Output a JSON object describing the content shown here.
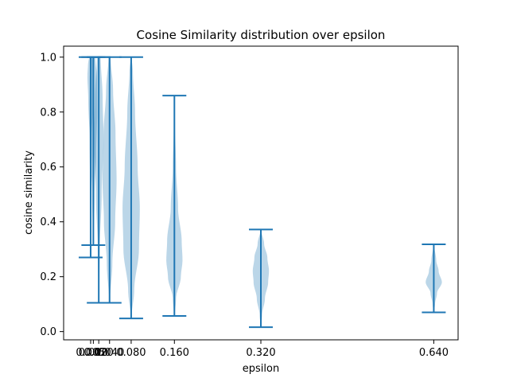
{
  "chart_data": {
    "type": "violin",
    "title": "Cosine Similarity distribution over epsilon",
    "xlabel": "epsilon",
    "ylabel": "cosine similarity",
    "xlim": [
      -0.045,
      0.685
    ],
    "ylim": [
      -0.03,
      1.04
    ],
    "x_ticks": [
      0.005,
      0.01,
      0.02,
      0.04,
      0.08,
      0.16,
      0.32,
      0.64
    ],
    "x_tick_labels": [
      "0.005",
      "0.010",
      "0.020",
      "0.040",
      "0.080",
      "0.160",
      "0.320",
      "0.640"
    ],
    "y_ticks": [
      0.0,
      0.2,
      0.4,
      0.6,
      0.8,
      1.0
    ],
    "y_tick_labels": [
      "0.0",
      "0.2",
      "0.4",
      "0.6",
      "0.8",
      "1.0"
    ],
    "grid": false,
    "colors": {
      "violin_fill": "#1f77b4",
      "violin_alpha": 0.3,
      "line": "#1f77b4"
    },
    "violins": [
      {
        "epsilon": 0.005,
        "min": 0.27,
        "max": 1.0,
        "width": 0.012,
        "profile": [
          [
            0.27,
            0.03
          ],
          [
            0.5,
            0.15
          ],
          [
            0.7,
            0.35
          ],
          [
            0.85,
            0.75
          ],
          [
            0.93,
            1.0
          ],
          [
            0.98,
            0.8
          ],
          [
            1.0,
            0.4
          ]
        ]
      },
      {
        "epsilon": 0.01,
        "min": 0.315,
        "max": 1.0,
        "width": 0.015,
        "profile": [
          [
            0.315,
            0.05
          ],
          [
            0.5,
            0.3
          ],
          [
            0.65,
            0.7
          ],
          [
            0.8,
            0.95
          ],
          [
            0.92,
            0.9
          ],
          [
            1.0,
            0.5
          ]
        ]
      },
      {
        "epsilon": 0.02,
        "min": 0.105,
        "max": 1.0,
        "width": 0.018,
        "profile": [
          [
            0.105,
            0.03
          ],
          [
            0.3,
            0.2
          ],
          [
            0.5,
            0.6
          ],
          [
            0.7,
            1.0
          ],
          [
            0.85,
            0.8
          ],
          [
            1.0,
            0.4
          ]
        ]
      },
      {
        "epsilon": 0.04,
        "min": 0.105,
        "max": 1.0,
        "width": 0.026,
        "profile": [
          [
            0.105,
            0.05
          ],
          [
            0.25,
            0.4
          ],
          [
            0.4,
            0.8
          ],
          [
            0.55,
            1.0
          ],
          [
            0.72,
            0.85
          ],
          [
            0.88,
            0.5
          ],
          [
            1.0,
            0.15
          ]
        ]
      },
      {
        "epsilon": 0.08,
        "min": 0.048,
        "max": 1.0,
        "width": 0.032,
        "profile": [
          [
            0.048,
            0.03
          ],
          [
            0.15,
            0.35
          ],
          [
            0.3,
            0.9
          ],
          [
            0.45,
            1.0
          ],
          [
            0.6,
            0.75
          ],
          [
            0.8,
            0.45
          ],
          [
            0.95,
            0.2
          ],
          [
            1.0,
            0.05
          ]
        ]
      },
      {
        "epsilon": 0.16,
        "min": 0.057,
        "max": 0.86,
        "width": 0.03,
        "profile": [
          [
            0.057,
            0.05
          ],
          [
            0.12,
            0.2
          ],
          [
            0.2,
            0.8
          ],
          [
            0.26,
            1.0
          ],
          [
            0.33,
            0.9
          ],
          [
            0.45,
            0.45
          ],
          [
            0.6,
            0.2
          ],
          [
            0.75,
            0.08
          ],
          [
            0.86,
            0.02
          ]
        ]
      },
      {
        "epsilon": 0.32,
        "min": 0.016,
        "max": 0.372,
        "width": 0.03,
        "profile": [
          [
            0.016,
            0.02
          ],
          [
            0.06,
            0.15
          ],
          [
            0.12,
            0.5
          ],
          [
            0.18,
            0.9
          ],
          [
            0.22,
            1.0
          ],
          [
            0.27,
            0.8
          ],
          [
            0.32,
            0.4
          ],
          [
            0.372,
            0.03
          ]
        ]
      },
      {
        "epsilon": 0.64,
        "min": 0.07,
        "max": 0.318,
        "width": 0.03,
        "profile": [
          [
            0.07,
            0.02
          ],
          [
            0.1,
            0.15
          ],
          [
            0.14,
            0.4
          ],
          [
            0.18,
            1.0
          ],
          [
            0.22,
            0.6
          ],
          [
            0.26,
            0.3
          ],
          [
            0.318,
            0.03
          ]
        ]
      }
    ]
  }
}
